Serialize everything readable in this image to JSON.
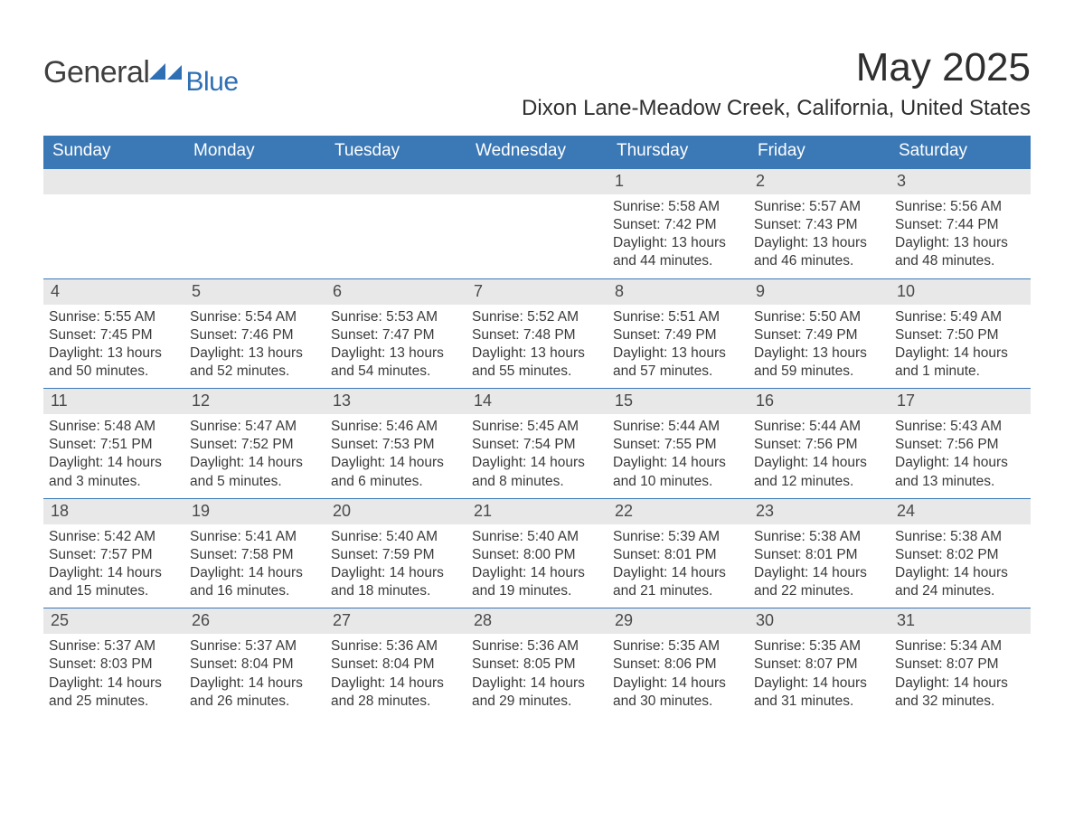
{
  "logo": {
    "text1": "General",
    "text2": "Blue",
    "arrow_color": "#2f6fb4"
  },
  "title": "May 2025",
  "location": "Dixon Lane-Meadow Creek, California, United States",
  "colors": {
    "header_bg": "#3a78b6",
    "header_text": "#ffffff",
    "daynum_bg": "#e8e8e8",
    "text": "#333333",
    "week_border": "#3a78b6"
  },
  "weekdays": [
    "Sunday",
    "Monday",
    "Tuesday",
    "Wednesday",
    "Thursday",
    "Friday",
    "Saturday"
  ],
  "weeks": [
    [
      {
        "empty": true
      },
      {
        "empty": true
      },
      {
        "empty": true
      },
      {
        "empty": true
      },
      {
        "num": "1",
        "sunrise": "Sunrise: 5:58 AM",
        "sunset": "Sunset: 7:42 PM",
        "day1": "Daylight: 13 hours",
        "day2": "and 44 minutes."
      },
      {
        "num": "2",
        "sunrise": "Sunrise: 5:57 AM",
        "sunset": "Sunset: 7:43 PM",
        "day1": "Daylight: 13 hours",
        "day2": "and 46 minutes."
      },
      {
        "num": "3",
        "sunrise": "Sunrise: 5:56 AM",
        "sunset": "Sunset: 7:44 PM",
        "day1": "Daylight: 13 hours",
        "day2": "and 48 minutes."
      }
    ],
    [
      {
        "num": "4",
        "sunrise": "Sunrise: 5:55 AM",
        "sunset": "Sunset: 7:45 PM",
        "day1": "Daylight: 13 hours",
        "day2": "and 50 minutes."
      },
      {
        "num": "5",
        "sunrise": "Sunrise: 5:54 AM",
        "sunset": "Sunset: 7:46 PM",
        "day1": "Daylight: 13 hours",
        "day2": "and 52 minutes."
      },
      {
        "num": "6",
        "sunrise": "Sunrise: 5:53 AM",
        "sunset": "Sunset: 7:47 PM",
        "day1": "Daylight: 13 hours",
        "day2": "and 54 minutes."
      },
      {
        "num": "7",
        "sunrise": "Sunrise: 5:52 AM",
        "sunset": "Sunset: 7:48 PM",
        "day1": "Daylight: 13 hours",
        "day2": "and 55 minutes."
      },
      {
        "num": "8",
        "sunrise": "Sunrise: 5:51 AM",
        "sunset": "Sunset: 7:49 PM",
        "day1": "Daylight: 13 hours",
        "day2": "and 57 minutes."
      },
      {
        "num": "9",
        "sunrise": "Sunrise: 5:50 AM",
        "sunset": "Sunset: 7:49 PM",
        "day1": "Daylight: 13 hours",
        "day2": "and 59 minutes."
      },
      {
        "num": "10",
        "sunrise": "Sunrise: 5:49 AM",
        "sunset": "Sunset: 7:50 PM",
        "day1": "Daylight: 14 hours",
        "day2": "and 1 minute."
      }
    ],
    [
      {
        "num": "11",
        "sunrise": "Sunrise: 5:48 AM",
        "sunset": "Sunset: 7:51 PM",
        "day1": "Daylight: 14 hours",
        "day2": "and 3 minutes."
      },
      {
        "num": "12",
        "sunrise": "Sunrise: 5:47 AM",
        "sunset": "Sunset: 7:52 PM",
        "day1": "Daylight: 14 hours",
        "day2": "and 5 minutes."
      },
      {
        "num": "13",
        "sunrise": "Sunrise: 5:46 AM",
        "sunset": "Sunset: 7:53 PM",
        "day1": "Daylight: 14 hours",
        "day2": "and 6 minutes."
      },
      {
        "num": "14",
        "sunrise": "Sunrise: 5:45 AM",
        "sunset": "Sunset: 7:54 PM",
        "day1": "Daylight: 14 hours",
        "day2": "and 8 minutes."
      },
      {
        "num": "15",
        "sunrise": "Sunrise: 5:44 AM",
        "sunset": "Sunset: 7:55 PM",
        "day1": "Daylight: 14 hours",
        "day2": "and 10 minutes."
      },
      {
        "num": "16",
        "sunrise": "Sunrise: 5:44 AM",
        "sunset": "Sunset: 7:56 PM",
        "day1": "Daylight: 14 hours",
        "day2": "and 12 minutes."
      },
      {
        "num": "17",
        "sunrise": "Sunrise: 5:43 AM",
        "sunset": "Sunset: 7:56 PM",
        "day1": "Daylight: 14 hours",
        "day2": "and 13 minutes."
      }
    ],
    [
      {
        "num": "18",
        "sunrise": "Sunrise: 5:42 AM",
        "sunset": "Sunset: 7:57 PM",
        "day1": "Daylight: 14 hours",
        "day2": "and 15 minutes."
      },
      {
        "num": "19",
        "sunrise": "Sunrise: 5:41 AM",
        "sunset": "Sunset: 7:58 PM",
        "day1": "Daylight: 14 hours",
        "day2": "and 16 minutes."
      },
      {
        "num": "20",
        "sunrise": "Sunrise: 5:40 AM",
        "sunset": "Sunset: 7:59 PM",
        "day1": "Daylight: 14 hours",
        "day2": "and 18 minutes."
      },
      {
        "num": "21",
        "sunrise": "Sunrise: 5:40 AM",
        "sunset": "Sunset: 8:00 PM",
        "day1": "Daylight: 14 hours",
        "day2": "and 19 minutes."
      },
      {
        "num": "22",
        "sunrise": "Sunrise: 5:39 AM",
        "sunset": "Sunset: 8:01 PM",
        "day1": "Daylight: 14 hours",
        "day2": "and 21 minutes."
      },
      {
        "num": "23",
        "sunrise": "Sunrise: 5:38 AM",
        "sunset": "Sunset: 8:01 PM",
        "day1": "Daylight: 14 hours",
        "day2": "and 22 minutes."
      },
      {
        "num": "24",
        "sunrise": "Sunrise: 5:38 AM",
        "sunset": "Sunset: 8:02 PM",
        "day1": "Daylight: 14 hours",
        "day2": "and 24 minutes."
      }
    ],
    [
      {
        "num": "25",
        "sunrise": "Sunrise: 5:37 AM",
        "sunset": "Sunset: 8:03 PM",
        "day1": "Daylight: 14 hours",
        "day2": "and 25 minutes."
      },
      {
        "num": "26",
        "sunrise": "Sunrise: 5:37 AM",
        "sunset": "Sunset: 8:04 PM",
        "day1": "Daylight: 14 hours",
        "day2": "and 26 minutes."
      },
      {
        "num": "27",
        "sunrise": "Sunrise: 5:36 AM",
        "sunset": "Sunset: 8:04 PM",
        "day1": "Daylight: 14 hours",
        "day2": "and 28 minutes."
      },
      {
        "num": "28",
        "sunrise": "Sunrise: 5:36 AM",
        "sunset": "Sunset: 8:05 PM",
        "day1": "Daylight: 14 hours",
        "day2": "and 29 minutes."
      },
      {
        "num": "29",
        "sunrise": "Sunrise: 5:35 AM",
        "sunset": "Sunset: 8:06 PM",
        "day1": "Daylight: 14 hours",
        "day2": "and 30 minutes."
      },
      {
        "num": "30",
        "sunrise": "Sunrise: 5:35 AM",
        "sunset": "Sunset: 8:07 PM",
        "day1": "Daylight: 14 hours",
        "day2": "and 31 minutes."
      },
      {
        "num": "31",
        "sunrise": "Sunrise: 5:34 AM",
        "sunset": "Sunset: 8:07 PM",
        "day1": "Daylight: 14 hours",
        "day2": "and 32 minutes."
      }
    ]
  ]
}
